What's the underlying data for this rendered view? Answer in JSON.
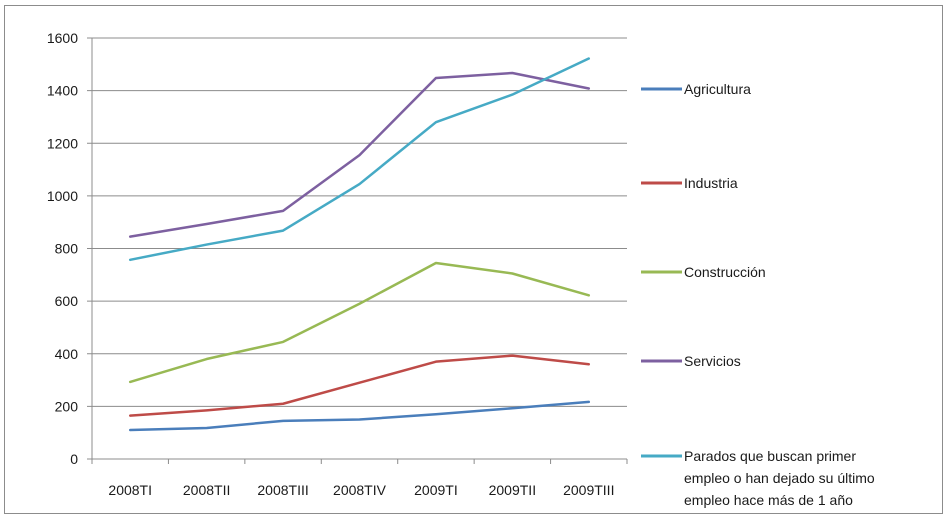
{
  "chart_data": {
    "type": "line",
    "title": "",
    "xlabel": "",
    "ylabel": "",
    "categories": [
      "2008TI",
      "2008TII",
      "2008TIII",
      "2008TIV",
      "2009TI",
      "2009TII",
      "2009TIII"
    ],
    "ylim": [
      0,
      1600
    ],
    "yticks": [
      0,
      200,
      400,
      600,
      800,
      1000,
      1200,
      1400,
      1600
    ],
    "grid": "horizontal",
    "legend_position": "right",
    "series": [
      {
        "name": "Agricultura",
        "color": "#4a7ebb",
        "values": [
          110,
          118,
          145,
          150,
          170,
          193,
          217
        ]
      },
      {
        "name": "Industria",
        "color": "#be4b48",
        "values": [
          165,
          185,
          210,
          290,
          370,
          393,
          360
        ]
      },
      {
        "name": "Construcción",
        "color": "#98b954",
        "values": [
          293,
          380,
          445,
          590,
          745,
          705,
          622
        ]
      },
      {
        "name": "Servicios",
        "color": "#7d60a0",
        "values": [
          845,
          893,
          943,
          1155,
          1448,
          1467,
          1408
        ]
      },
      {
        "name": "Parados que buscan primer empleo o han dejado su último empleo hace más de 1 año",
        "color": "#46aac5",
        "legend_lines": [
          "Parados que buscan primer",
          "empleo o han dejado su último",
          "empleo hace más de 1 año"
        ],
        "values": [
          757,
          815,
          868,
          1045,
          1280,
          1385,
          1522
        ]
      }
    ]
  }
}
